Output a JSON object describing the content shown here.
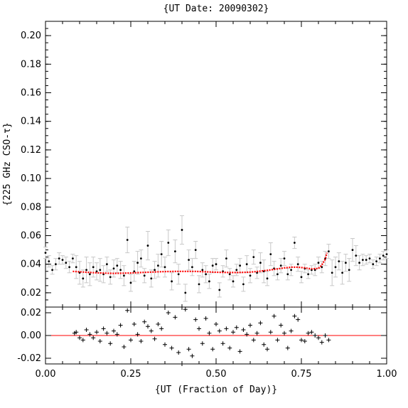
{
  "chart_data": [
    {
      "type": "scatter",
      "title": "{UT Date: 20090302}",
      "xlabel": "{UT (Fraction of Day)}",
      "ylabel": "{225 GHz CSO-τ}",
      "xlim": [
        0.0,
        1.0
      ],
      "ylim": [
        0.01,
        0.21
      ],
      "y_ticks": [
        "0.02",
        "0.04",
        "0.06",
        "0.08",
        "0.10",
        "0.12",
        "0.14",
        "0.16",
        "0.18",
        "0.20"
      ],
      "x_ticks": [
        "0.00",
        "0.25",
        "0.50",
        "0.75",
        "1.00"
      ],
      "grid": false,
      "series": [
        {
          "color": "#000000",
          "marker": "dot-with-errorbar",
          "errorbar_color": "#c8c8c8",
          "x": [
            0.0,
            0.01,
            0.02,
            0.03,
            0.04,
            0.05,
            0.06,
            0.07,
            0.08,
            0.09,
            0.1,
            0.11,
            0.12,
            0.13,
            0.14,
            0.15,
            0.16,
            0.17,
            0.18,
            0.19,
            0.2,
            0.21,
            0.22,
            0.23,
            0.24,
            0.25,
            0.26,
            0.27,
            0.28,
            0.29,
            0.3,
            0.31,
            0.32,
            0.33,
            0.34,
            0.35,
            0.36,
            0.37,
            0.38,
            0.39,
            0.4,
            0.41,
            0.42,
            0.43,
            0.44,
            0.45,
            0.46,
            0.47,
            0.48,
            0.49,
            0.5,
            0.51,
            0.52,
            0.53,
            0.54,
            0.55,
            0.56,
            0.57,
            0.58,
            0.59,
            0.6,
            0.61,
            0.62,
            0.63,
            0.64,
            0.65,
            0.66,
            0.67,
            0.68,
            0.69,
            0.7,
            0.71,
            0.72,
            0.73,
            0.74,
            0.75,
            0.76,
            0.77,
            0.78,
            0.79,
            0.8,
            0.81,
            0.82,
            0.83,
            0.84,
            0.85,
            0.86,
            0.87,
            0.88,
            0.89,
            0.9,
            0.91,
            0.92,
            0.93,
            0.94,
            0.95,
            0.96,
            0.97,
            0.98,
            0.99,
            1.0
          ],
          "y": [
            0.048,
            0.042,
            0.036,
            0.04,
            0.044,
            0.043,
            0.041,
            0.038,
            0.044,
            0.038,
            0.034,
            0.03,
            0.036,
            0.033,
            0.038,
            0.035,
            0.036,
            0.033,
            0.04,
            0.031,
            0.037,
            0.039,
            0.036,
            0.032,
            0.057,
            0.027,
            0.035,
            0.041,
            0.044,
            0.032,
            0.053,
            0.03,
            0.036,
            0.039,
            0.047,
            0.038,
            0.055,
            0.028,
            0.049,
            0.033,
            0.064,
            0.02,
            0.043,
            0.038,
            0.05,
            0.026,
            0.036,
            0.033,
            0.028,
            0.039,
            0.04,
            0.022,
            0.035,
            0.044,
            0.033,
            0.028,
            0.036,
            0.039,
            0.026,
            0.04,
            0.032,
            0.045,
            0.034,
            0.041,
            0.035,
            0.03,
            0.047,
            0.037,
            0.033,
            0.039,
            0.044,
            0.033,
            0.036,
            0.055,
            0.04,
            0.031,
            0.037,
            0.033,
            0.036,
            0.036,
            0.041,
            0.038,
            0.044,
            0.049,
            0.034,
            0.038,
            0.042,
            0.034,
            0.041,
            0.036,
            0.05,
            0.046,
            0.041,
            0.043,
            0.043,
            0.044,
            0.04,
            0.042,
            0.044,
            0.046,
            0.047
          ],
          "yerr": [
            0.004,
            0.004,
            0.003,
            0.004,
            0.004,
            0.003,
            0.004,
            0.004,
            0.003,
            0.008,
            0.008,
            0.006,
            0.009,
            0.008,
            0.007,
            0.006,
            0.008,
            0.006,
            0.005,
            0.005,
            0.006,
            0.005,
            0.006,
            0.007,
            0.009,
            0.006,
            0.007,
            0.008,
            0.006,
            0.005,
            0.01,
            0.006,
            0.006,
            0.008,
            0.009,
            0.007,
            0.009,
            0.006,
            0.008,
            0.007,
            0.01,
            0.006,
            0.007,
            0.006,
            0.006,
            0.006,
            0.005,
            0.006,
            0.005,
            0.005,
            0.004,
            0.005,
            0.004,
            0.006,
            0.004,
            0.004,
            0.004,
            0.005,
            0.005,
            0.006,
            0.005,
            0.005,
            0.004,
            0.007,
            0.008,
            0.005,
            0.008,
            0.005,
            0.004,
            0.005,
            0.005,
            0.004,
            0.004,
            0.004,
            0.005,
            0.004,
            0.003,
            0.003,
            0.003,
            0.004,
            0.004,
            0.004,
            0.005,
            0.005,
            0.009,
            0.007,
            0.006,
            0.008,
            0.006,
            0.008,
            0.008,
            0.007,
            0.005,
            0.004,
            0.003,
            0.003,
            0.003,
            0.003,
            0.003,
            0.003,
            0.003
          ]
        },
        {
          "color": "#ff0000",
          "marker": "dotted-fit-line",
          "x": [
            0.08,
            0.1,
            0.12,
            0.14,
            0.16,
            0.18,
            0.2,
            0.22,
            0.24,
            0.26,
            0.28,
            0.3,
            0.32,
            0.34,
            0.36,
            0.38,
            0.4,
            0.42,
            0.44,
            0.46,
            0.48,
            0.5,
            0.52,
            0.54,
            0.56,
            0.58,
            0.6,
            0.62,
            0.64,
            0.66,
            0.68,
            0.7,
            0.72,
            0.74,
            0.76,
            0.78,
            0.8,
            0.81,
            0.82,
            0.825
          ],
          "y": [
            0.035,
            0.0347,
            0.0344,
            0.0341,
            0.0339,
            0.0337,
            0.0336,
            0.0337,
            0.0338,
            0.034,
            0.0342,
            0.0344,
            0.0346,
            0.0348,
            0.0349,
            0.035,
            0.035,
            0.035,
            0.035,
            0.0348,
            0.0346,
            0.0344,
            0.0343,
            0.0342,
            0.0342,
            0.0343,
            0.0345,
            0.0349,
            0.0354,
            0.036,
            0.0367,
            0.0374,
            0.0379,
            0.0379,
            0.0374,
            0.0367,
            0.037,
            0.0395,
            0.0435,
            0.048
          ]
        }
      ]
    },
    {
      "type": "scatter",
      "panel": "residuals",
      "xlim": [
        0.0,
        1.0
      ],
      "ylim": [
        -0.025,
        0.025
      ],
      "y_ticks": [
        "-0.02",
        "0.00",
        "0.02"
      ],
      "x_ticks": [
        "0.00",
        "0.25",
        "0.50",
        "0.75",
        "1.00"
      ],
      "reference_line": 0.0,
      "reference_color": "#ff0000",
      "series": [
        {
          "color": "#000000",
          "marker": "plus",
          "x": [
            0.085,
            0.09,
            0.1,
            0.11,
            0.12,
            0.13,
            0.14,
            0.15,
            0.16,
            0.17,
            0.18,
            0.19,
            0.2,
            0.21,
            0.22,
            0.23,
            0.24,
            0.25,
            0.26,
            0.27,
            0.28,
            0.29,
            0.3,
            0.31,
            0.32,
            0.33,
            0.34,
            0.35,
            0.36,
            0.37,
            0.38,
            0.39,
            0.4,
            0.41,
            0.42,
            0.43,
            0.44,
            0.45,
            0.46,
            0.47,
            0.48,
            0.49,
            0.5,
            0.51,
            0.52,
            0.53,
            0.54,
            0.55,
            0.56,
            0.57,
            0.58,
            0.59,
            0.6,
            0.61,
            0.62,
            0.63,
            0.64,
            0.65,
            0.66,
            0.67,
            0.68,
            0.69,
            0.7,
            0.71,
            0.72,
            0.73,
            0.74,
            0.75,
            0.76,
            0.77,
            0.78,
            0.79,
            0.8,
            0.81,
            0.82,
            0.83
          ],
          "y": [
            0.002,
            0.003,
            -0.002,
            -0.004,
            0.005,
            0.001,
            -0.002,
            0.003,
            -0.005,
            0.006,
            0.002,
            -0.007,
            0.004,
            0.001,
            0.009,
            -0.01,
            0.022,
            -0.004,
            0.01,
            0.001,
            -0.005,
            0.012,
            0.008,
            0.004,
            -0.003,
            0.01,
            0.006,
            -0.008,
            0.02,
            -0.011,
            0.016,
            -0.015,
            -0.025,
            0.023,
            -0.012,
            -0.018,
            0.014,
            0.006,
            -0.007,
            0.015,
            0.002,
            -0.012,
            0.01,
            0.004,
            -0.007,
            0.006,
            -0.011,
            0.003,
            0.007,
            -0.014,
            0.005,
            0.001,
            0.009,
            -0.004,
            0.002,
            0.011,
            -0.008,
            -0.012,
            0.003,
            0.017,
            -0.004,
            0.009,
            0.002,
            -0.011,
            0.004,
            0.017,
            0.014,
            -0.004,
            -0.005,
            0.002,
            0.003,
            0.0,
            -0.002,
            -0.006,
            0.0,
            -0.004
          ]
        }
      ]
    }
  ]
}
